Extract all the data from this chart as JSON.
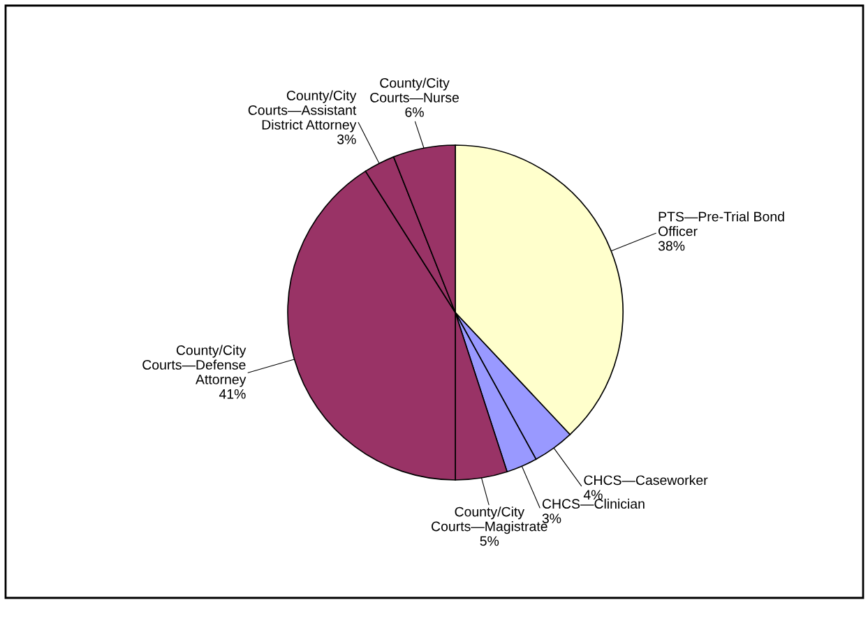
{
  "chart_data": {
    "type": "pie",
    "categories": [
      "PTS—Pre-Trial Bond\nOfficer",
      "CHCS—Caseworker",
      "CHCS—Clinician",
      "County/City\nCourts—Magistrate",
      "County/City\nCourts—Defense\nAttorney",
      "County/City\nCourts—Assistant\nDistrict Attorney",
      "County/City\nCourts—Nurse"
    ],
    "values": [
      38,
      4,
      3,
      5,
      41,
      3,
      6
    ],
    "value_labels": [
      "38%",
      "4%",
      "3%",
      "5%",
      "41%",
      "3%",
      "6%"
    ],
    "colors": [
      "#ffffcc",
      "#9999ff",
      "#9999ff",
      "#993366",
      "#993366",
      "#993366",
      "#993366"
    ],
    "legend": false
  }
}
